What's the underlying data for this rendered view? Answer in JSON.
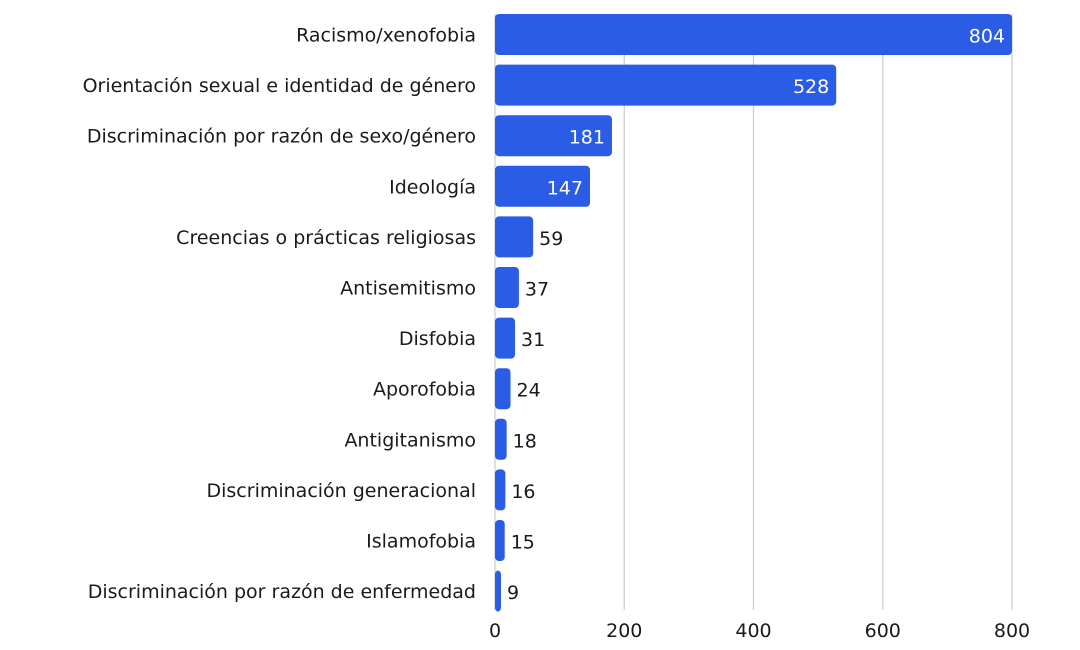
{
  "chart_data": {
    "type": "bar",
    "orientation": "horizontal",
    "title": "",
    "xlabel": "",
    "ylabel": "",
    "categories": [
      "Racismo/xenofobia",
      "Orientación sexual e identidad de género",
      "Discriminación por razón de sexo/género",
      "Ideología",
      "Creencias o prácticas religiosas",
      "Antisemitismo",
      "Disfobia",
      "Aporofobia",
      "Antigitanismo",
      "Discriminación generacional",
      "Islamofobia",
      "Discriminación por razón de enfermedad"
    ],
    "values": [
      804,
      528,
      181,
      147,
      59,
      37,
      31,
      24,
      18,
      16,
      15,
      9
    ],
    "xlim": [
      0,
      800
    ],
    "xticks": [
      0,
      200,
      400,
      600,
      800
    ],
    "grid": "vertical",
    "legend": "none",
    "colors": {
      "bar": "#2a5ce6",
      "grid": "#cccccc",
      "label_inside": "#ffffff",
      "label_outside": "#1a1a1a"
    }
  }
}
